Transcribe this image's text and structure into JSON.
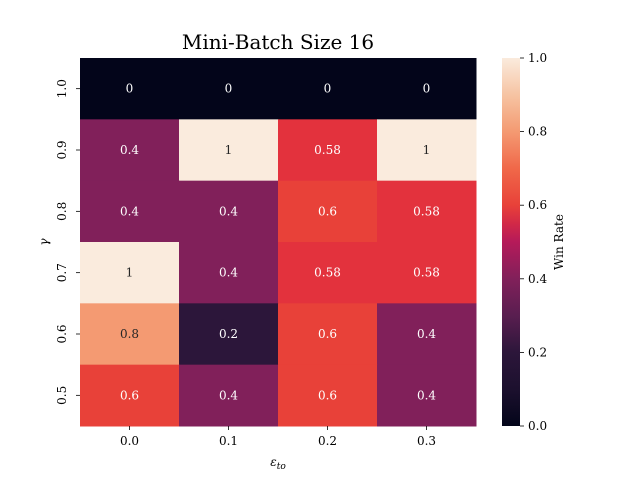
{
  "chart_data": {
    "type": "heatmap",
    "title": "Mini-Batch Size 16",
    "xlabel": "εto",
    "ylabel": "γ",
    "x_categories": [
      "0.0",
      "0.1",
      "0.2",
      "0.3"
    ],
    "y_categories": [
      "1.0",
      "0.9",
      "0.8",
      "0.7",
      "0.6",
      "0.5"
    ],
    "values": [
      [
        0,
        0,
        0,
        0
      ],
      [
        0.4,
        1,
        0.58,
        1
      ],
      [
        0.4,
        0.4,
        0.6,
        0.58
      ],
      [
        1,
        0.4,
        0.58,
        0.58
      ],
      [
        0.8,
        0.2,
        0.6,
        0.4
      ],
      [
        0.6,
        0.4,
        0.6,
        0.4
      ]
    ],
    "cell_labels": [
      [
        "0",
        "0",
        "0",
        "0"
      ],
      [
        "0.4",
        "1",
        "0.58",
        "1"
      ],
      [
        "0.4",
        "0.4",
        "0.6",
        "0.58"
      ],
      [
        "1",
        "0.4",
        "0.58",
        "0.58"
      ],
      [
        "0.8",
        "0.2",
        "0.6",
        "0.4"
      ],
      [
        "0.6",
        "0.4",
        "0.6",
        "0.4"
      ]
    ],
    "colorbar": {
      "label": "Win Rate",
      "range": [
        0,
        1
      ],
      "ticks": [
        "0.0",
        "0.2",
        "0.4",
        "0.6",
        "0.8",
        "1.0"
      ],
      "colormap": "rocket"
    },
    "grid": false
  }
}
